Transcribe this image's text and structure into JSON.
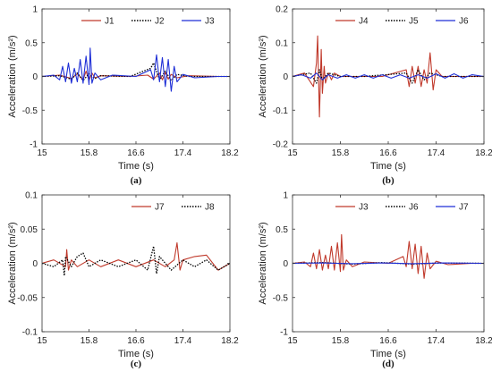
{
  "figure": {
    "panels": [
      {
        "caption": "(a)",
        "ylabel": "Acceleration (m/s²)",
        "xlabel": "Time (s)"
      },
      {
        "caption": "(b)",
        "ylabel": "Acceleration (m/s²)",
        "xlabel": "Time (s)"
      },
      {
        "caption": "(c)",
        "ylabel": "Acceleration (m/s²)",
        "xlabel": "Time (s)"
      },
      {
        "caption": "(d)",
        "ylabel": "Acceleration (m/s²)",
        "xlabel": "Time (s)"
      }
    ]
  },
  "chart_data": [
    {
      "type": "line",
      "caption": "(a)",
      "xlabel": "Time (s)",
      "ylabel": "Acceleration (m/s²)",
      "xlim": [
        15,
        18.2
      ],
      "ylim": [
        -1,
        1
      ],
      "xticks": [
        15,
        15.8,
        16.6,
        17.4,
        18.2
      ],
      "yticks": [
        -1,
        -0.5,
        0,
        0.5,
        1
      ],
      "legend_position": "top-right",
      "series": [
        {
          "name": "J1",
          "color": "#c0392b",
          "style": "solid",
          "x": [
            15.0,
            15.3,
            15.5,
            15.6,
            15.7,
            15.75,
            15.8,
            15.85,
            15.9,
            16.0,
            16.5,
            16.8,
            16.9,
            17.0,
            17.05,
            17.1,
            17.15,
            17.2,
            17.3,
            17.5,
            18.0,
            18.2
          ],
          "y": [
            0,
            0.02,
            -0.03,
            0.04,
            -0.05,
            0.08,
            -0.06,
            0.05,
            -0.02,
            0.01,
            0,
            0.02,
            -0.04,
            0.05,
            -0.05,
            0.06,
            -0.04,
            0.03,
            -0.02,
            0.01,
            0,
            0
          ]
        },
        {
          "name": "J2",
          "color": "#000000",
          "style": "dotted",
          "x": [
            15.0,
            15.3,
            15.5,
            15.6,
            15.7,
            15.8,
            15.9,
            16.0,
            16.5,
            16.85,
            16.9,
            17.0,
            17.1,
            17.2,
            17.3,
            17.5,
            18.2
          ],
          "y": [
            0,
            0.01,
            -0.04,
            0.05,
            -0.06,
            0.04,
            -0.03,
            0.01,
            0,
            0.12,
            0.2,
            -0.05,
            0.08,
            -0.06,
            0.03,
            0,
            0
          ]
        },
        {
          "name": "J3",
          "color": "#1f2fd6",
          "style": "solid",
          "x": [
            15.0,
            15.2,
            15.3,
            15.35,
            15.4,
            15.45,
            15.5,
            15.55,
            15.6,
            15.65,
            15.7,
            15.75,
            15.8,
            15.82,
            15.85,
            15.9,
            16.0,
            16.2,
            16.6,
            16.85,
            16.9,
            16.95,
            17.0,
            17.05,
            17.1,
            17.15,
            17.2,
            17.25,
            17.3,
            17.4,
            17.6,
            18.0,
            18.2
          ],
          "y": [
            0,
            0.02,
            -0.05,
            0.15,
            -0.08,
            0.2,
            -0.1,
            0.12,
            -0.08,
            0.25,
            -0.1,
            0.3,
            -0.12,
            0.42,
            -0.1,
            0.05,
            -0.05,
            0.02,
            0,
            0.1,
            -0.05,
            0.32,
            -0.08,
            0.28,
            -0.15,
            0.25,
            -0.22,
            0.15,
            -0.08,
            0.03,
            -0.02,
            0,
            0
          ]
        }
      ]
    },
    {
      "type": "line",
      "caption": "(b)",
      "xlabel": "Time (s)",
      "ylabel": "Acceleration (m/s²)",
      "xlim": [
        15,
        18.2
      ],
      "ylim": [
        -0.2,
        0.2
      ],
      "xticks": [
        15,
        15.8,
        16.6,
        17.4,
        18.2
      ],
      "yticks": [
        -0.2,
        -0.1,
        0,
        0.1,
        0.2
      ],
      "legend_position": "top-right",
      "series": [
        {
          "name": "J4",
          "color": "#c0392b",
          "style": "solid",
          "x": [
            15.0,
            15.2,
            15.35,
            15.4,
            15.42,
            15.45,
            15.48,
            15.5,
            15.53,
            15.55,
            15.6,
            15.65,
            15.7,
            15.8,
            16.0,
            16.5,
            16.9,
            16.95,
            17.0,
            17.05,
            17.1,
            17.15,
            17.2,
            17.25,
            17.3,
            17.35,
            17.4,
            17.5,
            18.0,
            18.2
          ],
          "y": [
            0,
            0.01,
            -0.03,
            0.04,
            0.12,
            -0.12,
            0.08,
            -0.05,
            0.03,
            -0.02,
            0.01,
            -0.01,
            0.01,
            0,
            0,
            0,
            0.02,
            -0.03,
            0.03,
            -0.02,
            0.03,
            -0.03,
            0.02,
            -0.02,
            0.07,
            -0.04,
            0.02,
            0,
            0,
            0
          ]
        },
        {
          "name": "J5",
          "color": "#000000",
          "style": "dotted",
          "x": [
            15.0,
            15.3,
            15.4,
            15.45,
            15.5,
            15.6,
            15.8,
            16.2,
            16.9,
            17.0,
            17.1,
            17.2,
            17.3,
            17.5,
            18.2
          ],
          "y": [
            0,
            0.01,
            -0.02,
            0.02,
            -0.01,
            0.01,
            0,
            0,
            0.01,
            -0.02,
            0.02,
            -0.01,
            0.01,
            0,
            0
          ]
        },
        {
          "name": "J6",
          "color": "#1f2fd6",
          "style": "solid",
          "x": [
            15.0,
            15.15,
            15.3,
            15.4,
            15.5,
            15.6,
            15.75,
            15.9,
            16.05,
            16.2,
            16.35,
            16.5,
            16.65,
            16.8,
            16.95,
            17.1,
            17.25,
            17.4,
            17.55,
            17.7,
            17.85,
            18.0,
            18.2
          ],
          "y": [
            0,
            0.005,
            -0.005,
            0.01,
            -0.01,
            0.005,
            -0.005,
            0.005,
            -0.005,
            0.005,
            -0.005,
            0.005,
            -0.005,
            0.005,
            -0.005,
            0.005,
            -0.005,
            0.008,
            -0.005,
            0.008,
            -0.005,
            0.005,
            0
          ]
        }
      ]
    },
    {
      "type": "line",
      "caption": "(c)",
      "xlabel": "Time (s)",
      "ylabel": "Acceleration (m/s²)",
      "xlim": [
        15,
        18.2
      ],
      "ylim": [
        -0.1,
        0.1
      ],
      "xticks": [
        15,
        15.8,
        16.6,
        17.4,
        18.2
      ],
      "yticks": [
        -0.1,
        -0.05,
        0,
        0.05,
        0.1
      ],
      "legend_position": "top-right",
      "series": [
        {
          "name": "J7",
          "color": "#c0392b",
          "style": "solid",
          "x": [
            15.0,
            15.2,
            15.4,
            15.42,
            15.45,
            15.5,
            15.6,
            15.8,
            16.0,
            16.3,
            16.6,
            16.9,
            17.1,
            17.25,
            17.3,
            17.35,
            17.4,
            17.6,
            17.8,
            18.0,
            18.2
          ],
          "y": [
            0,
            0.005,
            -0.005,
            0.02,
            -0.01,
            0.005,
            -0.005,
            0.005,
            -0.005,
            0.005,
            -0.005,
            0.005,
            -0.005,
            0.005,
            0.03,
            -0.01,
            0.005,
            0.01,
            0.012,
            -0.01,
            0
          ]
        },
        {
          "name": "J8",
          "color": "#000000",
          "style": "dotted",
          "x": [
            15.0,
            15.2,
            15.35,
            15.38,
            15.4,
            15.5,
            15.6,
            15.7,
            15.8,
            16.0,
            16.3,
            16.6,
            16.8,
            16.9,
            16.95,
            17.0,
            17.2,
            17.4,
            17.6,
            17.8,
            18.0,
            18.2
          ],
          "y": [
            0,
            -0.005,
            0.005,
            -0.018,
            0.01,
            -0.005,
            0.01,
            0.015,
            -0.005,
            0.005,
            -0.005,
            0.005,
            -0.01,
            0.025,
            -0.015,
            0.01,
            -0.01,
            0.005,
            -0.005,
            0.005,
            -0.01,
            0
          ]
        }
      ]
    },
    {
      "type": "line",
      "caption": "(d)",
      "xlabel": "Time (s)",
      "ylabel": "Acceleration (m/s²)",
      "xlim": [
        15,
        18.2
      ],
      "ylim": [
        -1,
        1
      ],
      "xticks": [
        15,
        15.8,
        16.6,
        17.4,
        18.2
      ],
      "yticks": [
        -1,
        -0.5,
        0,
        0.5,
        1
      ],
      "legend_position": "top-right",
      "series": [
        {
          "name": "J3",
          "color": "#c0392b",
          "style": "solid",
          "x": [
            15.0,
            15.2,
            15.3,
            15.35,
            15.4,
            15.45,
            15.5,
            15.55,
            15.6,
            15.65,
            15.7,
            15.75,
            15.8,
            15.82,
            15.85,
            15.9,
            16.0,
            16.2,
            16.6,
            16.85,
            16.9,
            16.95,
            17.0,
            17.05,
            17.1,
            17.15,
            17.2,
            17.25,
            17.3,
            17.4,
            17.6,
            18.0,
            18.2
          ],
          "y": [
            0,
            0.02,
            -0.05,
            0.15,
            -0.08,
            0.2,
            -0.1,
            0.12,
            -0.08,
            0.25,
            -0.1,
            0.3,
            -0.12,
            0.42,
            -0.1,
            0.05,
            -0.05,
            0.02,
            0,
            0.1,
            -0.05,
            0.32,
            -0.08,
            0.28,
            -0.15,
            0.25,
            -0.22,
            0.15,
            -0.08,
            0.03,
            -0.02,
            0,
            0
          ]
        },
        {
          "name": "J6",
          "color": "#000000",
          "style": "dotted",
          "x": [
            15.0,
            15.5,
            16.0,
            16.5,
            17.0,
            17.5,
            18.2
          ],
          "y": [
            0,
            0.01,
            -0.01,
            0.01,
            -0.01,
            0.005,
            0
          ]
        },
        {
          "name": "J7",
          "color": "#1f2fd6",
          "style": "solid",
          "x": [
            15.0,
            15.5,
            16.0,
            16.5,
            17.0,
            17.5,
            18.2
          ],
          "y": [
            0,
            0.005,
            -0.005,
            0.005,
            -0.005,
            0.005,
            0
          ]
        }
      ]
    }
  ]
}
